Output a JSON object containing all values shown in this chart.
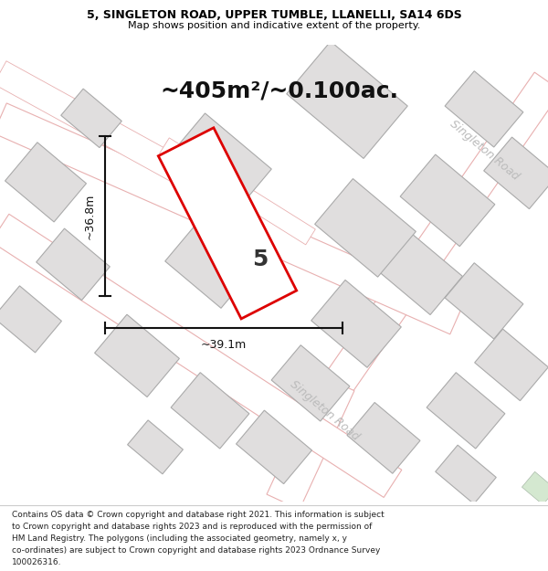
{
  "title_line1": "5, SINGLETON ROAD, UPPER TUMBLE, LLANELLI, SA14 6DS",
  "title_line2": "Map shows position and indicative extent of the property.",
  "area_label": "~405m²/~0.100ac.",
  "plot_number": "5",
  "dim_vertical": "~36.8m",
  "dim_horizontal": "~39.1m",
  "road_label_upper": "Singleton Road",
  "road_label_lower": "Singleton Road",
  "footer_lines": [
    "Contains OS data © Crown copyright and database right 2021. This information is subject",
    "to Crown copyright and database rights 2023 and is reproduced with the permission of",
    "HM Land Registry. The polygons (including the associated geometry, namely x, y",
    "co-ordinates) are subject to Crown copyright and database rights 2023 Ordnance Survey",
    "100026316."
  ],
  "bg_color": "#f8f4f4",
  "map_bg": "#f8f5f5",
  "plot_color": "#dd0000",
  "building_fill": "#e0dede",
  "building_edge": "#aaaaaa",
  "road_fill": "#f5e8e8",
  "road_edge": "#e8b0b0",
  "dim_color": "#111111",
  "label_color": "#bbbbbb",
  "title_fontsize": 9,
  "subtitle_fontsize": 8,
  "area_fontsize": 18,
  "plot_num_fontsize": 18,
  "dim_fontsize": 9,
  "road_label_fontsize": 9,
  "footer_fontsize": 6.5
}
